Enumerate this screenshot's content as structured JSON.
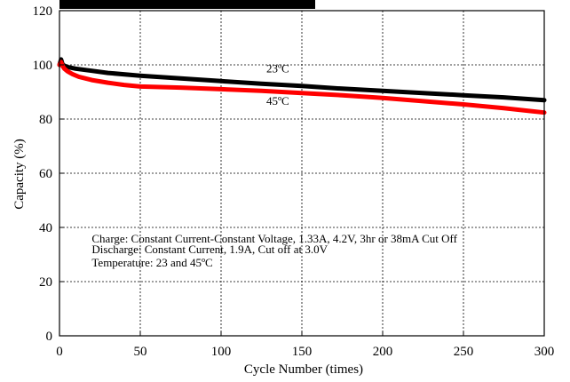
{
  "chart_data": {
    "type": "line",
    "xlabel": "Cycle Number (times)",
    "ylabel": "Capacity (%)",
    "xlim": [
      0,
      300
    ],
    "ylim": [
      0,
      120
    ],
    "x_ticks": [
      0,
      50,
      100,
      150,
      200,
      250,
      300
    ],
    "y_ticks": [
      0,
      20,
      40,
      60,
      80,
      100,
      120
    ],
    "grid": true,
    "grid_style": "dotted",
    "series": [
      {
        "name": "23ºC",
        "color": "#000000",
        "x": [
          0,
          1,
          2,
          5,
          10,
          20,
          30,
          50,
          75,
          100,
          125,
          150,
          175,
          200,
          225,
          250,
          275,
          300
        ],
        "y": [
          100,
          102,
          100,
          99.2,
          98.6,
          97.8,
          97.0,
          96.0,
          95.0,
          94.0,
          93.0,
          92.2,
          91.2,
          90.4,
          89.6,
          88.8,
          88.0,
          87.0
        ]
      },
      {
        "name": "45ºC",
        "color": "#ff0000",
        "x": [
          0,
          1,
          2,
          3,
          5,
          8,
          12,
          20,
          30,
          40,
          50,
          75,
          100,
          125,
          150,
          175,
          200,
          225,
          250,
          275,
          300
        ],
        "y": [
          100,
          101,
          99.5,
          98.6,
          97.6,
          96.6,
          95.6,
          94.4,
          93.4,
          92.6,
          92.0,
          91.6,
          91.0,
          90.4,
          89.6,
          88.8,
          87.8,
          86.6,
          85.4,
          84.0,
          82.4
        ]
      }
    ],
    "series_labels": [
      {
        "text": "23ºC",
        "x": 128,
        "y": 97.2
      },
      {
        "text": "45ºC",
        "x": 128,
        "y": 85.2
      }
    ],
    "annotation": {
      "lines": [
        "Charge: Constant Current-Constant Voltage, 1.33A, 4.2V, 3hr or 38mA Cut Off",
        "Discharge: Constant Current, 1.9A, Cut off at 3.0V",
        "Temperature: 23 and 45ºC"
      ],
      "x": 20,
      "y": [
        34.5,
        30.5,
        25.5
      ]
    }
  }
}
